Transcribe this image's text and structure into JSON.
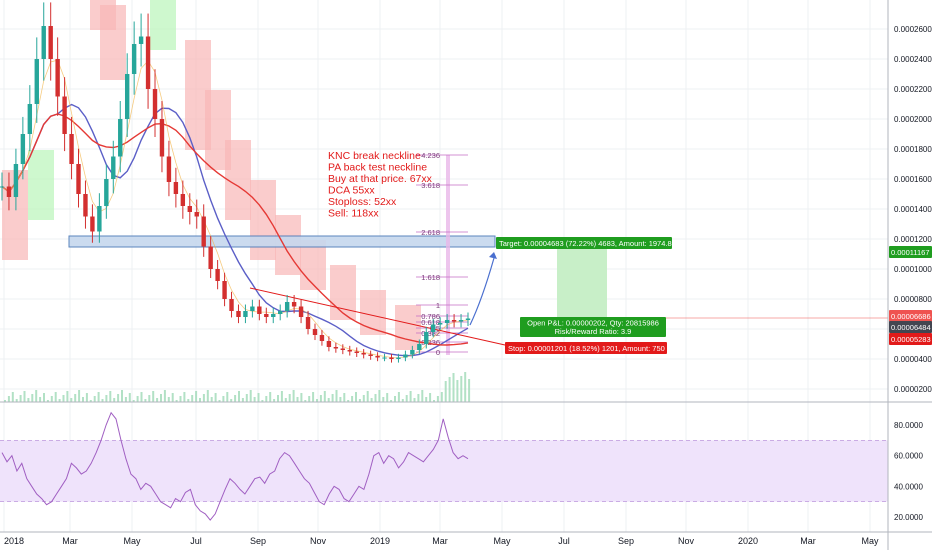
{
  "colors": {
    "background": "#ffffff",
    "grid": "#eef0f3",
    "axis_border": "#b2b5be",
    "axis_text": "#131722",
    "price_down": "#d32f2f",
    "price_up": "#26a69a",
    "ma_blue": "#5b5fc7",
    "ma_red": "#e53935",
    "cloud_red": "#f8b6b6",
    "cloud_green": "#b9f5b9",
    "zone_blue": "#c6d8ee",
    "zone_blue_border": "#4a78b8",
    "target_green": "#1f9d1f",
    "target_zone": "#c8efc8",
    "stop_red": "#e21a1a",
    "fib_purple": "#c46cc4",
    "rsi_line": "#a05fc2",
    "rsi_band": "#efe3fb",
    "current_price_bg": "#ef5350",
    "dark_label_bg": "#434651",
    "annotation_text": "#e21a1a"
  },
  "annotation": {
    "lines": [
      "KNC break neckline",
      "PA back test neckline",
      "Buy at that price. 67xx",
      "DCA 55xx",
      "Stoploss: 52xx",
      "Sell: 118xx"
    ]
  },
  "position": {
    "target_label": "Target: 0.00004683 (72.22%) 4683, Amount: 1974.81",
    "open_pnl_label": "Open P&L: 0.00000202, Qty: 20815986",
    "risk_reward_label": "Risk/Reward Ratio: 3.9",
    "stop_label": "Stop: 0.00001201 (18.52%) 1201, Amount: 750"
  },
  "fibonacci": [
    {
      "label": "4.236"
    },
    {
      "label": "3.618"
    },
    {
      "label": "2.618"
    },
    {
      "label": "1.618"
    },
    {
      "label": "1"
    },
    {
      "label": "0.786"
    },
    {
      "label": "0.618"
    },
    {
      "label": "0.5"
    },
    {
      "label": "0.382"
    },
    {
      "label": "0.236"
    },
    {
      "label": "0"
    }
  ],
  "price_badges": [
    {
      "label": "0.00011167",
      "color": "#1f9d1f"
    },
    {
      "label": "0.00006686",
      "color": "#ef5350"
    },
    {
      "label": "0.00006484",
      "color": "#434651"
    },
    {
      "label": "0.00005283",
      "color": "#e21a1a"
    }
  ],
  "chart_data": [
    {
      "type": "candlestick",
      "title": "",
      "price_axis_ticks": [
        "0.00026000",
        "0.00024000",
        "0.00022000",
        "0.00020000",
        "0.00018000",
        "0.00016000",
        "0.00014000",
        "0.00012000",
        "0.00010000",
        "0.00008000",
        "0.00006000",
        "0.00004000",
        "0.00002000"
      ],
      "ylim": [
        7e-06,
        0.000265
      ],
      "time_axis_labels": [
        "2018",
        "Mar",
        "May",
        "Jul",
        "Sep",
        "Nov",
        "2019",
        "Mar",
        "May",
        "Jul",
        "Sep",
        "Nov",
        "2020",
        "Mar",
        "May"
      ],
      "series": [
        {
          "approx_closes": [
            0.000155,
            0.000148,
            0.00017,
            0.00019,
            0.00021,
            0.00024,
            0.000262,
            0.00024,
            0.000215,
            0.00019,
            0.00017,
            0.00015,
            0.000135,
            0.000125,
            0.000142,
            0.00016,
            0.000175,
            0.0002,
            0.00023,
            0.00025,
            0.000255,
            0.00022,
            0.0002,
            0.000175,
            0.000158,
            0.00015,
            0.000142,
            0.000138,
            0.000135,
            0.000115,
            0.0001,
            9.2e-05,
            8e-05,
            7.2e-05,
            6.8e-05,
            7.2e-05,
            7.5e-05,
            7e-05,
            6.8e-05,
            7e-05,
            7.2e-05,
            7.8e-05,
            7.5e-05,
            6.8e-05,
            6e-05,
            5.6e-05,
            5.2e-05,
            4.8e-05,
            4.7e-05,
            4.6e-05,
            4.5e-05,
            4.4e-05,
            4.3e-05,
            4.2e-05,
            4.1e-05,
            4.1e-05,
            4e-05,
            4.1e-05,
            4.3e-05,
            4.6e-05,
            5e-05,
            5.8e-05,
            6.3e-05,
            6.4e-05,
            6.6e-05,
            6.5e-05,
            6.6e-05,
            6.7e-05
          ]
        }
      ],
      "support_zone": {
        "low": 0.000115,
        "high": 0.000122
      }
    },
    {
      "type": "line",
      "title": "",
      "name": "",
      "y_axis_ticks": [
        "80.0000",
        "60.0000",
        "40.0000",
        "20.0000"
      ],
      "ylim": [
        12,
        90
      ],
      "band": [
        30,
        70
      ],
      "values": [
        62,
        56,
        60,
        50,
        55,
        45,
        40,
        35,
        32,
        28,
        30,
        35,
        40,
        45,
        55,
        52,
        48,
        50,
        55,
        62,
        70,
        80,
        88,
        84,
        70,
        58,
        48,
        45,
        38,
        42,
        40,
        35,
        30,
        28,
        26,
        32,
        30,
        36,
        38,
        28,
        24,
        22,
        18,
        22,
        30,
        38,
        45,
        42,
        38,
        35,
        40,
        45,
        46,
        42,
        48,
        50,
        58,
        62,
        60,
        55,
        50,
        45,
        42,
        36,
        30,
        28,
        35,
        40,
        38,
        32,
        30,
        35,
        40,
        38,
        48,
        60,
        62,
        55,
        60,
        58,
        52,
        56,
        62,
        60,
        58,
        56,
        60,
        64,
        70,
        84,
        72,
        62,
        58,
        60,
        58
      ]
    }
  ]
}
